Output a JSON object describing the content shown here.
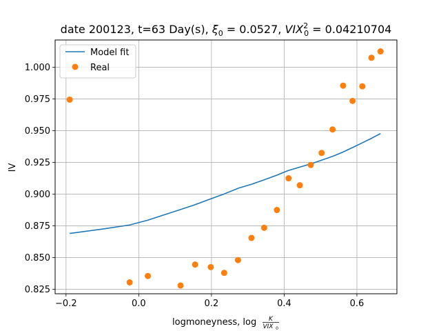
{
  "chart_data": {
    "type": "line+scatter",
    "title": "date 200123, t=63 Day(s), ξ₀ = 0.0527, VIX₀² = 0.04210704",
    "title_parts": {
      "prefix": "date 200123, t=63 Day(s), ",
      "xi_symbol": "ξ",
      "xi_sub": "0",
      "xi_value": " = 0.0527, ",
      "vix_symbol": "VIX",
      "vix_sub": "0",
      "vix_sup": "2",
      "vix_value": " = 0.04210704"
    },
    "xlabel": "logmoneyness, log K/VIX₀",
    "xlabel_parts": {
      "prefix": "logmoneyness, log",
      "frac_num": "K",
      "frac_den_main": "VIX",
      "frac_den_sub": "0"
    },
    "ylabel": "IV",
    "xlim": [
      -0.23,
      0.71
    ],
    "ylim": [
      0.8215,
      1.0215
    ],
    "xticks": [
      {
        "value": -0.2,
        "label": "−0.2"
      },
      {
        "value": 0.0,
        "label": "0.0"
      },
      {
        "value": 0.2,
        "label": "0.2"
      },
      {
        "value": 0.4,
        "label": "0.4"
      },
      {
        "value": 0.6,
        "label": "0.6"
      }
    ],
    "yticks": [
      {
        "value": 0.825,
        "label": "0.825"
      },
      {
        "value": 0.85,
        "label": "0.850"
      },
      {
        "value": 0.875,
        "label": "0.875"
      },
      {
        "value": 0.9,
        "label": "0.900"
      },
      {
        "value": 0.925,
        "label": "0.925"
      },
      {
        "value": 0.95,
        "label": "0.950"
      },
      {
        "value": 0.975,
        "label": "0.975"
      },
      {
        "value": 1.0,
        "label": "1.000"
      }
    ],
    "grid": true,
    "legend_position": "top-left",
    "series": [
      {
        "name": "Model fit",
        "kind": "line",
        "color": "#1f77b4",
        "x": [
          -0.19,
          -0.1,
          -0.025,
          0.025,
          0.1,
          0.15,
          0.2,
          0.235,
          0.275,
          0.31,
          0.345,
          0.38,
          0.41,
          0.445,
          0.475,
          0.505,
          0.535,
          0.56,
          0.59,
          0.615,
          0.64,
          0.665
        ],
        "y": [
          0.869,
          0.8725,
          0.8757,
          0.8795,
          0.8865,
          0.8912,
          0.8965,
          0.9002,
          0.9048,
          0.9078,
          0.9113,
          0.915,
          0.9185,
          0.9215,
          0.924,
          0.927,
          0.93,
          0.933,
          0.937,
          0.9405,
          0.944,
          0.9478
        ]
      },
      {
        "name": "Real",
        "kind": "scatter",
        "color": "#ff7f0e",
        "x": [
          -0.19,
          -0.025,
          0.025,
          0.115,
          0.155,
          0.198,
          0.235,
          0.273,
          0.31,
          0.345,
          0.38,
          0.412,
          0.443,
          0.473,
          0.503,
          0.533,
          0.562,
          0.588,
          0.615,
          0.64,
          0.665
        ],
        "y": [
          0.9745,
          0.8305,
          0.8355,
          0.828,
          0.8445,
          0.8425,
          0.838,
          0.848,
          0.8655,
          0.8735,
          0.8875,
          0.9125,
          0.907,
          0.923,
          0.9325,
          0.951,
          0.9855,
          0.9735,
          0.985,
          1.0075,
          1.0125
        ]
      }
    ]
  }
}
